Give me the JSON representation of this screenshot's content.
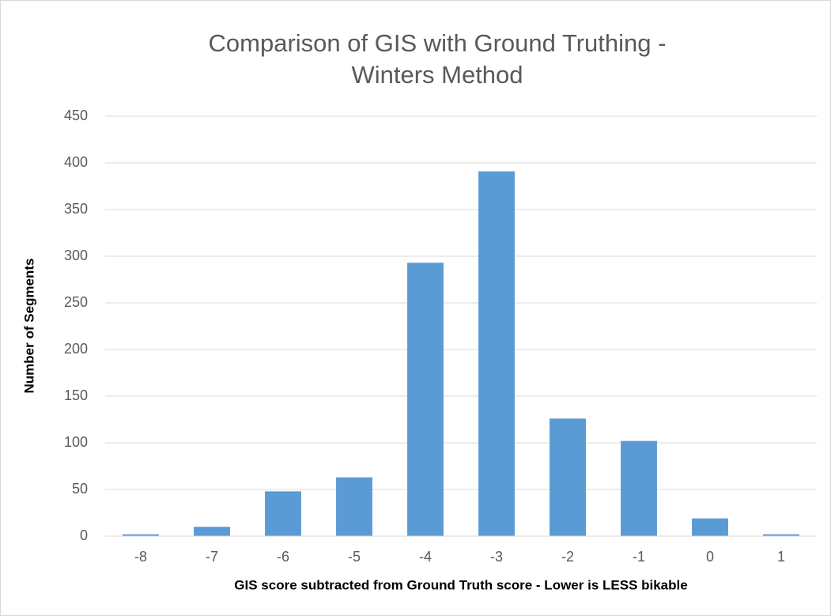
{
  "chart_data": {
    "type": "bar",
    "title": [
      "Comparison of GIS with Ground Truthing -",
      "Winters Method"
    ],
    "x_label": "GIS score subtracted from Ground Truth score - Lower is LESS bikable",
    "y_label": "Number of Segments",
    "categories": [
      "-8",
      "-7",
      "-6",
      "-5",
      "-4",
      "-3",
      "-2",
      "-1",
      "0",
      "1"
    ],
    "values": [
      2,
      10,
      48,
      63,
      293,
      391,
      126,
      102,
      19,
      2
    ],
    "color": "#5b9bd5",
    "ylim": [
      0,
      450
    ],
    "yticks": [
      0,
      50,
      100,
      150,
      200,
      250,
      300,
      350,
      400,
      450
    ],
    "grid": true
  }
}
